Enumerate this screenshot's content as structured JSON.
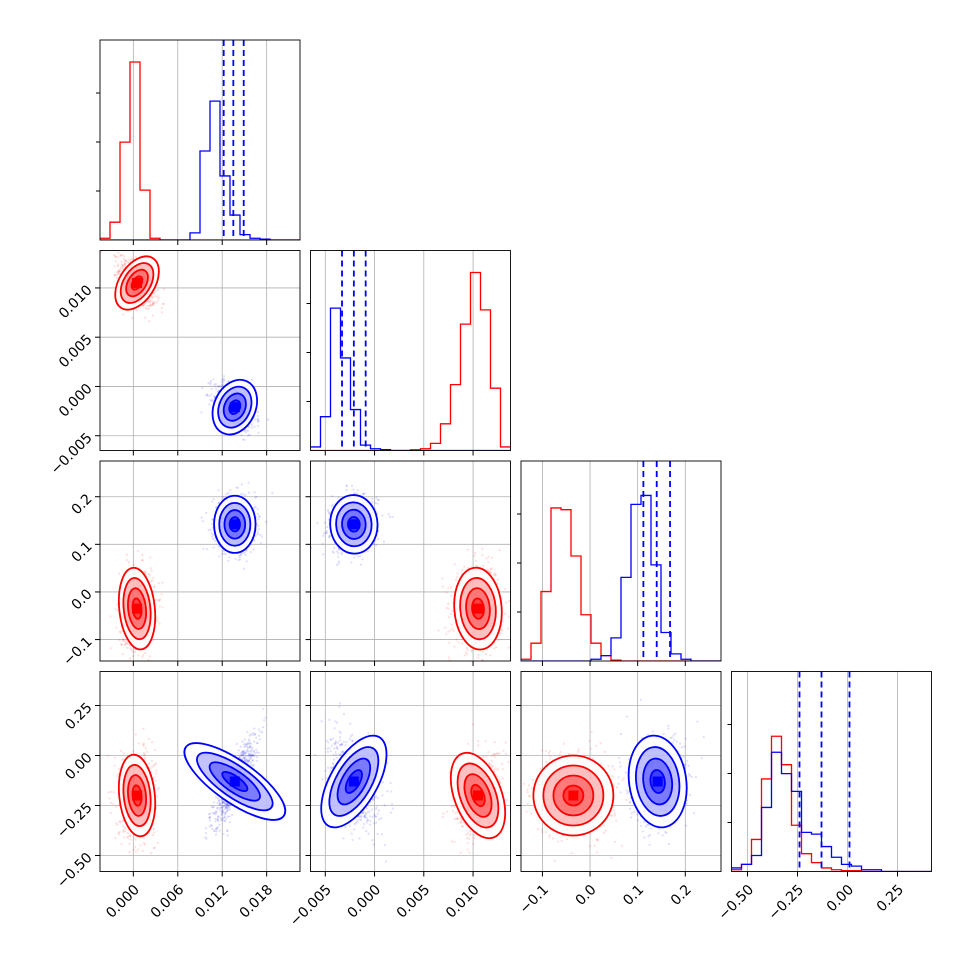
{
  "colors": {
    "series_a": "#ff0000",
    "series_b": "#0000ff",
    "grid": "#b0b0b0"
  },
  "chart_data": {
    "type": "corner",
    "grid": true,
    "legend": "none",
    "parameters": [
      {
        "range": [
          -0.0045,
          0.0225
        ],
        "ticks": [
          0.0,
          0.006,
          0.012,
          0.018
        ],
        "tick_labels": [
          "0.000",
          "0.006",
          "0.012",
          "0.018"
        ]
      },
      {
        "range": [
          -0.0065,
          0.0138
        ],
        "ticks": [
          -0.005,
          0.0,
          0.005,
          0.01
        ],
        "tick_labels": [
          "−0.005",
          "0.000",
          "0.005",
          "0.010"
        ]
      },
      {
        "range": [
          -0.145,
          0.275
        ],
        "ticks": [
          -0.1,
          0.0,
          0.1,
          0.2
        ],
        "tick_labels": [
          "−0.1",
          "0.0",
          "0.1",
          "0.2"
        ]
      },
      {
        "range": [
          -0.58,
          0.42
        ],
        "ticks": [
          -0.5,
          -0.25,
          0.0,
          0.25
        ],
        "tick_labels": [
          "−0.50",
          "−0.25",
          "0.00",
          "0.25"
        ]
      }
    ],
    "series": [
      {
        "color": "#ff0000",
        "center": [
          0.0005,
          0.0105,
          -0.035,
          -0.2
        ],
        "spread": [
          0.0012,
          0.0012,
          0.042,
          0.1
        ]
      },
      {
        "color": "#0000ff",
        "center": [
          0.0137,
          -0.0021,
          0.142,
          -0.13
        ],
        "spread": [
          0.0014,
          0.0012,
          0.03,
          0.11
        ],
        "quantiles": [
          [
            0.0122,
            0.0135,
            0.0149
          ],
          [
            -0.0033,
            -0.0021,
            -0.0009
          ],
          [
            0.112,
            0.14,
            0.168
          ],
          [
            -0.24,
            -0.13,
            0.01
          ]
        ]
      }
    ],
    "histograms": [
      {
        "bin_edges_range": [
          -0.0045,
          0.0225
        ],
        "bins": 20,
        "series_a": [
          0.01,
          0.1,
          0.55,
          1.0,
          0.28,
          0.01,
          0,
          0,
          0,
          0,
          0,
          0,
          0,
          0,
          0,
          0,
          0,
          0,
          0,
          0
        ],
        "series_b": [
          0,
          0,
          0,
          0,
          0,
          0,
          0,
          0,
          0,
          0.04,
          0.5,
          0.78,
          0.36,
          0.14,
          0.03,
          0.01,
          0.005,
          0,
          0,
          0
        ]
      },
      {
        "bin_edges_range": [
          -0.0065,
          0.0138
        ],
        "bins": 20,
        "series_a": [
          0,
          0,
          0,
          0,
          0,
          0,
          0,
          0,
          0,
          0,
          0.004,
          0.01,
          0.04,
          0.15,
          0.37,
          0.71,
          1.0,
          0.79,
          0.35,
          0.02
        ],
        "series_b": [
          0.02,
          0.19,
          0.8,
          0.52,
          0.23,
          0.03,
          0.01,
          0.005,
          0,
          0,
          0,
          0,
          0,
          0,
          0,
          0,
          0,
          0,
          0,
          0
        ]
      },
      {
        "bin_edges_range": [
          -0.145,
          0.275
        ],
        "bins": 20,
        "series_a": [
          0.01,
          0.1,
          0.39,
          0.86,
          0.85,
          0.59,
          0.26,
          0.1,
          0.03,
          0.005,
          0,
          0,
          0,
          0,
          0,
          0,
          0,
          0,
          0,
          0
        ],
        "series_b": [
          0,
          0,
          0,
          0,
          0,
          0,
          0,
          0.01,
          0.03,
          0.13,
          0.47,
          0.88,
          0.93,
          0.54,
          0.16,
          0.04,
          0.01,
          0,
          0,
          0
        ]
      },
      {
        "bin_edges_range": [
          -0.58,
          0.42
        ],
        "bins": 20,
        "series_a": [
          0.01,
          0.04,
          0.18,
          0.52,
          0.76,
          0.6,
          0.26,
          0.1,
          0.05,
          0.02,
          0.01,
          0.005,
          0.005,
          0,
          0,
          0,
          0,
          0,
          0,
          0
        ],
        "series_b": [
          0.02,
          0.04,
          0.09,
          0.36,
          0.67,
          0.55,
          0.45,
          0.22,
          0.21,
          0.14,
          0.08,
          0.04,
          0.03,
          0.01,
          0.01,
          0,
          0,
          0,
          0,
          0
        ]
      }
    ]
  }
}
